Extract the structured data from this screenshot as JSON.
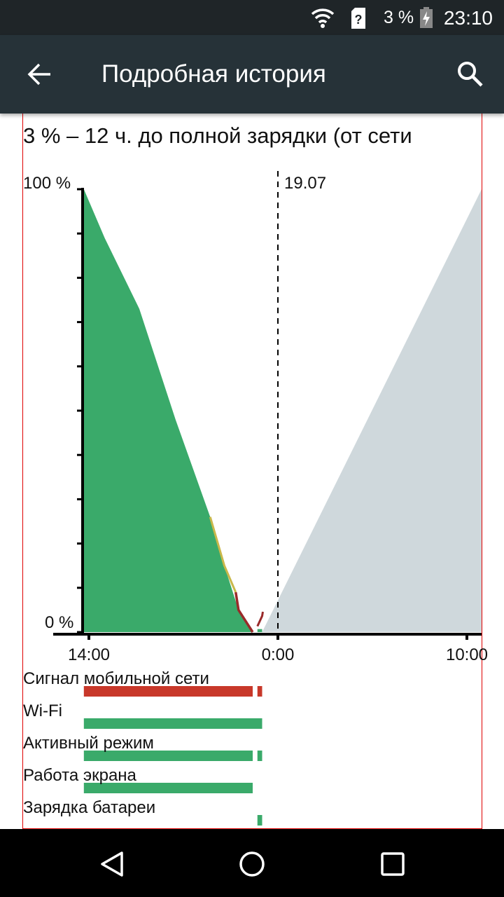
{
  "status_bar": {
    "battery_percent": "3 %",
    "time": "23:10",
    "icons": [
      "wifi-icon",
      "sim-unknown-icon",
      "battery-charging-icon"
    ]
  },
  "toolbar": {
    "title": "Подробная история",
    "back_icon": "arrow-back-icon",
    "search_icon": "search-icon"
  },
  "headline": "3 % – 12 ч. до полной зарядки (от сети",
  "chart_data": {
    "type": "area",
    "ylim": [
      0,
      100
    ],
    "y_tick_labels": [
      "100 %",
      "0 %"
    ],
    "x_tick_labels": [
      "14:00",
      "0:00",
      "10:00"
    ],
    "date_marker": {
      "label": "19.07",
      "time": "0:00"
    },
    "battery": [
      {
        "t": "13:44",
        "v": 100
      },
      {
        "t": "14:50",
        "v": 89
      },
      {
        "t": "16:40",
        "v": 73
      },
      {
        "t": "18:35",
        "v": 48
      },
      {
        "t": "20:25",
        "v": 26
      },
      {
        "t": "21:10",
        "v": 15
      },
      {
        "t": "21:55",
        "v": 5
      },
      {
        "t": "22:40",
        "v": 0
      }
    ],
    "charging_segment": [
      {
        "t": "22:55",
        "v": 1
      },
      {
        "t": "23:10",
        "v": 3
      }
    ],
    "projection": [
      {
        "t": "23:10",
        "v": 3
      },
      {
        "t": "10:45",
        "v": 100
      }
    ],
    "colors": {
      "battery": "#3aaa6a",
      "projection": "#cfd8dc",
      "signal": "#c8382a",
      "active": "#3aaa6a",
      "low_line": "#9a2a2a",
      "mid_line": "#c9b84a"
    }
  },
  "rows": [
    {
      "label": "Сигнал мобильной сети",
      "color": "#c8382a",
      "segments": [
        [
          "13:44",
          "22:40"
        ],
        [
          "22:55",
          "23:10"
        ]
      ]
    },
    {
      "label": "Wi-Fi",
      "color": "#3aaa6a",
      "segments": [
        [
          "13:44",
          "23:10"
        ]
      ]
    },
    {
      "label": "Активный режим",
      "color": "#3aaa6a",
      "segments": [
        [
          "13:44",
          "22:40"
        ],
        [
          "22:55",
          "23:10"
        ]
      ]
    },
    {
      "label": "Работа экрана",
      "color": "#3aaa6a",
      "segments": [
        [
          "13:44",
          "22:40"
        ]
      ]
    },
    {
      "label": "Зарядка батареи",
      "color": "#3aaa6a",
      "segments": [
        [
          "22:55",
          "23:10"
        ]
      ]
    }
  ],
  "nav": {
    "back": "nav-back-icon",
    "home": "nav-home-icon",
    "recents": "nav-recents-icon"
  }
}
